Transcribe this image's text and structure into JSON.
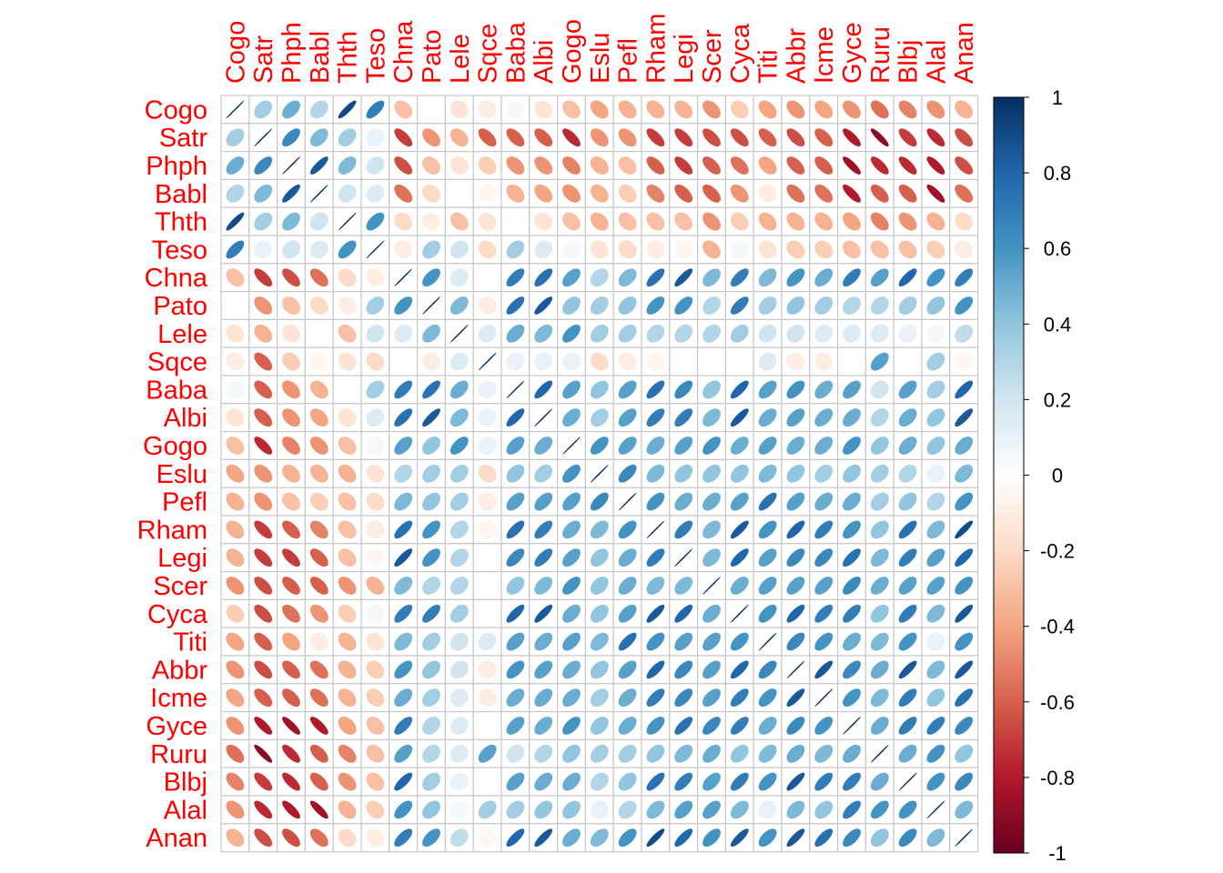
{
  "chart_data": {
    "type": "heatmap",
    "subtype": "correlation-matrix-ellipses",
    "title": "",
    "xlabel": "",
    "ylabel": "",
    "label_color": "#ff0000",
    "variables": [
      "Cogo",
      "Satr",
      "Phph",
      "Babl",
      "Thth",
      "Teso",
      "Chna",
      "Pato",
      "Lele",
      "Sqce",
      "Baba",
      "Albi",
      "Gogo",
      "Eslu",
      "Pefl",
      "Rham",
      "Legi",
      "Scer",
      "Cyca",
      "Titi",
      "Abbr",
      "Icme",
      "Gyce",
      "Ruru",
      "Blbj",
      "Alal",
      "Anan"
    ],
    "matrix": [
      [
        1,
        0.35,
        0.5,
        0.3,
        0.9,
        0.7,
        -0.3,
        0,
        -0.15,
        -0.1,
        0.05,
        -0.15,
        -0.3,
        -0.4,
        -0.35,
        -0.35,
        -0.35,
        -0.45,
        -0.25,
        -0.4,
        -0.45,
        -0.4,
        -0.45,
        -0.55,
        -0.5,
        -0.45,
        -0.35
      ],
      [
        0.35,
        1,
        0.65,
        0.45,
        0.35,
        0.1,
        -0.7,
        -0.45,
        -0.35,
        -0.6,
        -0.6,
        -0.6,
        -0.75,
        -0.45,
        -0.45,
        -0.7,
        -0.7,
        -0.65,
        -0.65,
        -0.6,
        -0.65,
        -0.6,
        -0.8,
        -0.9,
        -0.7,
        -0.75,
        -0.65
      ],
      [
        0.5,
        0.65,
        1,
        0.85,
        0.45,
        0.2,
        -0.65,
        -0.3,
        -0.15,
        -0.25,
        -0.45,
        -0.45,
        -0.5,
        -0.35,
        -0.3,
        -0.6,
        -0.7,
        -0.6,
        -0.55,
        -0.4,
        -0.6,
        -0.6,
        -0.85,
        -0.75,
        -0.75,
        -0.8,
        -0.65
      ],
      [
        0.3,
        0.45,
        0.85,
        1,
        0.2,
        0.15,
        -0.55,
        -0.2,
        0,
        -0.05,
        -0.35,
        -0.4,
        -0.45,
        -0.35,
        -0.25,
        -0.5,
        -0.6,
        -0.6,
        -0.45,
        -0.1,
        -0.55,
        -0.55,
        -0.8,
        -0.6,
        -0.6,
        -0.85,
        -0.55
      ],
      [
        0.9,
        0.35,
        0.45,
        0.2,
        1,
        0.6,
        -0.2,
        -0.1,
        -0.3,
        -0.15,
        0,
        -0.15,
        -0.3,
        -0.35,
        -0.3,
        -0.3,
        -0.3,
        -0.45,
        -0.25,
        -0.35,
        -0.35,
        -0.35,
        -0.4,
        -0.5,
        -0.45,
        -0.35,
        -0.2
      ],
      [
        0.7,
        0.1,
        0.2,
        0.15,
        0.6,
        1,
        -0.1,
        0.35,
        0.2,
        -0.2,
        0.35,
        0.15,
        0.05,
        -0.15,
        -0.2,
        -0.1,
        -0.05,
        -0.35,
        0.05,
        -0.15,
        -0.25,
        -0.25,
        -0.3,
        -0.3,
        -0.3,
        -0.25,
        -0.1
      ],
      [
        -0.3,
        -0.7,
        -0.65,
        -0.55,
        -0.2,
        -0.1,
        1,
        0.6,
        0.15,
        0,
        0.7,
        0.75,
        0.55,
        0.3,
        0.45,
        0.75,
        0.85,
        0.45,
        0.7,
        0.45,
        0.6,
        0.5,
        0.7,
        0.55,
        0.8,
        0.6,
        0.7
      ],
      [
        0,
        -0.45,
        -0.3,
        -0.2,
        -0.1,
        0.35,
        0.6,
        1,
        0.45,
        -0.1,
        0.75,
        0.85,
        0.4,
        0.35,
        0.4,
        0.6,
        0.6,
        0.3,
        0.7,
        0.35,
        0.4,
        0.35,
        0.3,
        0.3,
        0.35,
        0.4,
        0.6
      ],
      [
        -0.15,
        -0.35,
        -0.15,
        0,
        -0.3,
        0.2,
        0.15,
        0.45,
        1,
        0.15,
        0.5,
        0.45,
        0.6,
        0.35,
        0.35,
        0.3,
        0.3,
        0.3,
        0.35,
        0.2,
        0.2,
        0.15,
        0.15,
        0.15,
        0.1,
        0.05,
        0.25
      ],
      [
        -0.1,
        -0.6,
        -0.25,
        -0.05,
        -0.15,
        -0.2,
        0,
        -0.1,
        0.15,
        1,
        0.1,
        0.1,
        0.1,
        -0.2,
        -0.1,
        -0.05,
        0,
        0,
        0,
        0.15,
        -0.1,
        -0.1,
        0,
        0.55,
        0,
        0.35,
        -0.05
      ],
      [
        0.05,
        -0.6,
        -0.45,
        -0.35,
        0,
        0.35,
        0.7,
        0.75,
        0.5,
        0.1,
        1,
        0.8,
        0.55,
        0.4,
        0.55,
        0.75,
        0.65,
        0.4,
        0.8,
        0.55,
        0.6,
        0.5,
        0.55,
        0.2,
        0.55,
        0.35,
        0.8
      ],
      [
        -0.15,
        -0.6,
        -0.45,
        -0.4,
        -0.15,
        0.15,
        0.75,
        0.85,
        0.45,
        0.1,
        0.8,
        1,
        0.5,
        0.35,
        0.55,
        0.7,
        0.7,
        0.45,
        0.85,
        0.5,
        0.55,
        0.5,
        0.5,
        0.3,
        0.5,
        0.4,
        0.85
      ],
      [
        -0.3,
        -0.75,
        -0.5,
        -0.45,
        -0.3,
        0.05,
        0.55,
        0.4,
        0.6,
        0.1,
        0.55,
        0.5,
        1,
        0.6,
        0.55,
        0.5,
        0.55,
        0.6,
        0.5,
        0.55,
        0.5,
        0.5,
        0.6,
        0.4,
        0.5,
        0.4,
        0.5
      ],
      [
        -0.4,
        -0.45,
        -0.35,
        -0.35,
        -0.35,
        -0.15,
        0.3,
        0.35,
        0.35,
        -0.2,
        0.4,
        0.35,
        0.6,
        1,
        0.65,
        0.45,
        0.4,
        0.4,
        0.4,
        0.45,
        0.4,
        0.35,
        0.4,
        0.35,
        0.3,
        0.1,
        0.45
      ],
      [
        -0.35,
        -0.45,
        -0.3,
        -0.25,
        -0.3,
        -0.2,
        0.45,
        0.4,
        0.35,
        -0.1,
        0.55,
        0.55,
        0.55,
        0.65,
        1,
        0.6,
        0.5,
        0.5,
        0.55,
        0.75,
        0.55,
        0.5,
        0.5,
        0.35,
        0.4,
        0.3,
        0.6
      ],
      [
        -0.35,
        -0.7,
        -0.6,
        -0.5,
        -0.3,
        -0.1,
        0.75,
        0.6,
        0.3,
        -0.05,
        0.75,
        0.7,
        0.5,
        0.45,
        0.6,
        1,
        0.7,
        0.45,
        0.85,
        0.6,
        0.8,
        0.7,
        0.6,
        0.4,
        0.75,
        0.45,
        0.9
      ],
      [
        -0.35,
        -0.7,
        -0.7,
        -0.6,
        -0.3,
        -0.05,
        0.85,
        0.6,
        0.3,
        0,
        0.65,
        0.7,
        0.55,
        0.4,
        0.5,
        0.7,
        1,
        0.45,
        0.8,
        0.55,
        0.65,
        0.65,
        0.75,
        0.45,
        0.7,
        0.55,
        0.8
      ],
      [
        -0.45,
        -0.65,
        -0.6,
        -0.6,
        -0.45,
        -0.35,
        0.45,
        0.3,
        0.3,
        0,
        0.4,
        0.45,
        0.6,
        0.4,
        0.5,
        0.45,
        0.45,
        1,
        0.5,
        0.55,
        0.55,
        0.55,
        0.65,
        0.5,
        0.55,
        0.55,
        0.6
      ],
      [
        -0.25,
        -0.65,
        -0.55,
        -0.45,
        -0.25,
        0.05,
        0.7,
        0.7,
        0.35,
        0,
        0.8,
        0.85,
        0.5,
        0.4,
        0.55,
        0.85,
        0.8,
        0.5,
        1,
        0.6,
        0.8,
        0.7,
        0.7,
        0.4,
        0.7,
        0.45,
        0.85
      ],
      [
        -0.4,
        -0.6,
        -0.4,
        -0.1,
        -0.35,
        -0.15,
        0.45,
        0.35,
        0.2,
        0.15,
        0.55,
        0.5,
        0.55,
        0.45,
        0.75,
        0.6,
        0.55,
        0.55,
        0.6,
        1,
        0.65,
        0.6,
        0.5,
        0.45,
        0.6,
        0.1,
        0.6
      ],
      [
        -0.45,
        -0.65,
        -0.6,
        -0.55,
        -0.35,
        -0.25,
        0.6,
        0.4,
        0.2,
        -0.1,
        0.6,
        0.55,
        0.5,
        0.4,
        0.55,
        0.8,
        0.65,
        0.55,
        0.8,
        0.65,
        1,
        0.85,
        0.65,
        0.5,
        0.85,
        0.45,
        0.85
      ],
      [
        -0.4,
        -0.6,
        -0.6,
        -0.55,
        -0.35,
        -0.25,
        0.5,
        0.35,
        0.15,
        -0.1,
        0.5,
        0.5,
        0.5,
        0.35,
        0.5,
        0.7,
        0.65,
        0.55,
        0.7,
        0.6,
        0.85,
        1,
        0.6,
        0.45,
        0.7,
        0.4,
        0.75
      ],
      [
        -0.45,
        -0.8,
        -0.85,
        -0.8,
        -0.4,
        -0.3,
        0.7,
        0.3,
        0.15,
        0,
        0.55,
        0.5,
        0.6,
        0.4,
        0.5,
        0.6,
        0.75,
        0.65,
        0.7,
        0.5,
        0.65,
        0.6,
        1,
        0.5,
        0.7,
        0.7,
        0.65
      ],
      [
        -0.55,
        -0.9,
        -0.75,
        -0.6,
        -0.5,
        -0.3,
        0.55,
        0.3,
        0.15,
        0.55,
        0.2,
        0.3,
        0.4,
        0.35,
        0.35,
        0.4,
        0.45,
        0.5,
        0.4,
        0.45,
        0.5,
        0.45,
        0.5,
        1,
        0.5,
        0.6,
        0.4
      ],
      [
        -0.5,
        -0.7,
        -0.75,
        -0.6,
        -0.45,
        -0.3,
        0.8,
        0.35,
        0.1,
        0,
        0.55,
        0.5,
        0.5,
        0.3,
        0.4,
        0.75,
        0.7,
        0.55,
        0.7,
        0.6,
        0.85,
        0.7,
        0.7,
        0.5,
        1,
        0.6,
        0.65
      ],
      [
        -0.45,
        -0.75,
        -0.8,
        -0.85,
        -0.35,
        -0.25,
        0.6,
        0.4,
        0.05,
        0.35,
        0.35,
        0.4,
        0.4,
        0.1,
        0.3,
        0.45,
        0.55,
        0.55,
        0.45,
        0.1,
        0.45,
        0.4,
        0.7,
        0.6,
        0.6,
        1,
        0.45
      ],
      [
        -0.35,
        -0.65,
        -0.65,
        -0.55,
        -0.2,
        -0.1,
        0.7,
        0.6,
        0.25,
        -0.05,
        0.8,
        0.85,
        0.5,
        0.45,
        0.6,
        0.9,
        0.8,
        0.6,
        0.85,
        0.6,
        0.85,
        0.75,
        0.65,
        0.4,
        0.65,
        0.45,
        1
      ]
    ],
    "colorbar": {
      "range": [
        -1,
        1
      ],
      "ticks": [
        "1",
        "0.8",
        "0.6",
        "0.4",
        "0.2",
        "0",
        "-0.2",
        "-0.4",
        "-0.6",
        "-0.8",
        "-1"
      ],
      "low_color": "#67001f",
      "mid_color": "#ffffff",
      "high_color": "#053061",
      "placement": "right"
    }
  }
}
